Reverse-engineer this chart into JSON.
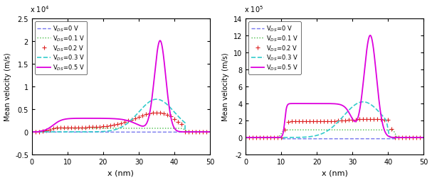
{
  "left": {
    "ylim": [
      -5000,
      25000
    ],
    "ytick_vals": [
      -5000,
      0,
      5000,
      10000,
      15000,
      20000,
      25000
    ],
    "ytick_labels": [
      "-0.5",
      "0",
      "0.5",
      "1",
      "1.5",
      "2",
      "2.5"
    ],
    "ylabel": "Mean velocity (m/s)",
    "xlabel": "x (nm)",
    "scale_label": "x 10$^4$",
    "xlim": [
      0,
      50
    ],
    "xticks": [
      0,
      10,
      20,
      30,
      40,
      50
    ]
  },
  "right": {
    "ylim": [
      -200000,
      1400000
    ],
    "ytick_vals": [
      -200000,
      0,
      200000,
      400000,
      600000,
      800000,
      1000000,
      1200000,
      1400000
    ],
    "ytick_labels": [
      "-2",
      "0",
      "2",
      "4",
      "6",
      "8",
      "10",
      "12",
      "14"
    ],
    "ylabel": "Mean velocity (m/s)",
    "xlabel": "x (nm)",
    "scale_label": "x 10$^5$",
    "xlim": [
      0,
      50
    ],
    "xticks": [
      0,
      10,
      20,
      30,
      40,
      50
    ]
  },
  "lines": [
    {
      "key": "VDS0",
      "label": "V$_{DS}$=0 V",
      "color": "#7777ee",
      "ls": "--",
      "lw": 1.0,
      "marker": "None",
      "ms": 0
    },
    {
      "key": "VDS01",
      "label": "V$_{DS}$=0.1 V",
      "color": "#44bb44",
      "ls": ":",
      "lw": 1.0,
      "marker": "None",
      "ms": 0
    },
    {
      "key": "VDS02",
      "label": "V$_{DS}$=0.2 V",
      "color": "#dd2222",
      "ls": "None",
      "lw": 1.0,
      "marker": "+",
      "ms": 3
    },
    {
      "key": "VDS03",
      "label": "V$_{DS}$=0.3 V",
      "color": "#33cccc",
      "ls": "--",
      "lw": 1.2,
      "marker": "None",
      "ms": 0
    },
    {
      "key": "VDS05",
      "label": "V$_{DS}$=0.5 V",
      "color": "#dd00dd",
      "ls": "-",
      "lw": 1.3,
      "marker": "None",
      "ms": 0
    }
  ]
}
